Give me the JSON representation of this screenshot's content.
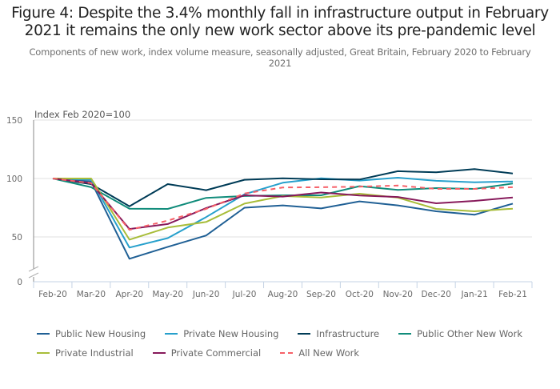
{
  "chart_data": {
    "type": "line",
    "title": "Figure 4: Despite the 3.4% monthly fall in infrastructure output in February 2021 it remains the only new work sector above its pre-pandemic level",
    "subtitle": "Components of new work, index volume measure, seasonally adjusted, Great Britain, February 2020 to February 2021",
    "xlabel": "",
    "ylabel": "Index Feb 2020=100",
    "ylim": [
      0,
      150
    ],
    "yticks": [
      0,
      50,
      100,
      150
    ],
    "y_axis_break": true,
    "grid": true,
    "legend_position": "bottom",
    "categories": [
      "Feb-20",
      "Mar-20",
      "Apr-20",
      "May-20",
      "Jun-20",
      "Jul-20",
      "Aug-20",
      "Sep-20",
      "Oct-20",
      "Nov-20",
      "Dec-20",
      "Jan-21",
      "Feb-21"
    ],
    "series": [
      {
        "name": "Public New Housing",
        "color": "#206095",
        "dashed": false,
        "values": [
          100,
          97.5,
          31.3,
          41.5,
          51.2,
          75,
          77,
          74.4,
          80.4,
          77,
          71.9,
          69,
          78.5
        ]
      },
      {
        "name": "Private New Housing",
        "color": "#27a0cc",
        "dashed": false,
        "values": [
          100,
          99,
          40.9,
          49,
          67,
          86.5,
          96.4,
          100.2,
          98.2,
          100.7,
          98,
          96.8,
          97.5
        ]
      },
      {
        "name": "Infrastructure",
        "color": "#003c57",
        "dashed": false,
        "values": [
          100,
          95.2,
          76.2,
          95.2,
          90,
          98.9,
          100.2,
          99.3,
          99.1,
          106.2,
          105.3,
          108,
          104.3
        ]
      },
      {
        "name": "Public Other New Work",
        "color": "#118c7b",
        "dashed": false,
        "values": [
          100,
          92.5,
          74.2,
          74,
          83.4,
          85,
          85.6,
          85.6,
          93.4,
          90.2,
          91.8,
          91.1,
          95.7
        ]
      },
      {
        "name": "Private Industrial",
        "color": "#a8bd3a",
        "dashed": false,
        "values": [
          100,
          100,
          47.7,
          58,
          62.8,
          78.5,
          85,
          83.8,
          87,
          83.6,
          74,
          71.9,
          74.2
        ]
      },
      {
        "name": "Private Commercial",
        "color": "#871a5b",
        "dashed": false,
        "values": [
          100,
          96,
          56.8,
          61,
          74.7,
          85.6,
          84.5,
          88,
          85.4,
          84.2,
          78.8,
          80.8,
          83.8
        ]
      },
      {
        "name": "All New Work",
        "color": "#f66068",
        "dashed": true,
        "values": [
          100,
          96,
          56,
          64,
          74,
          87.2,
          92.3,
          92.5,
          93,
          94,
          91.1,
          91.1,
          92.5
        ]
      }
    ]
  }
}
